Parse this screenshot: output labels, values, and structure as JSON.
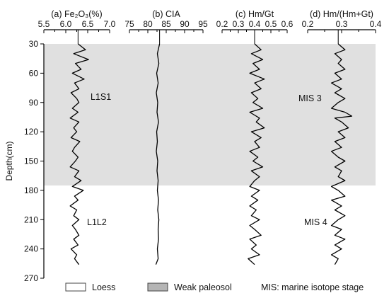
{
  "chart_data": {
    "type": "line",
    "y_axis": {
      "label": "Depth(cm)",
      "range": [
        30,
        270
      ],
      "reversed": true,
      "ticks": [
        "30",
        "60",
        "90",
        "120",
        "150",
        "180",
        "210",
        "240",
        "270"
      ]
    },
    "shaded_band": {
      "depth_range": [
        30,
        175
      ],
      "color": "#e0e0e0"
    },
    "panels": [
      {
        "title": "(a) Fe₂O₃(%)",
        "xlim": [
          5.5,
          7.0
        ],
        "ticks": [
          "5.5",
          "6.0",
          "6.5",
          "7.0"
        ],
        "depths": [
          30,
          36,
          40,
          46,
          50,
          56,
          60,
          66,
          70,
          76,
          80,
          86,
          90,
          96,
          100,
          106,
          110,
          116,
          120,
          126,
          130,
          136,
          140,
          146,
          150,
          156,
          160,
          166,
          170,
          176,
          180,
          186,
          190,
          196,
          200,
          206,
          210,
          216,
          220,
          226,
          230,
          236,
          240,
          246,
          250,
          256
        ],
        "values": [
          6.28,
          6.45,
          6.18,
          6.52,
          6.22,
          6.35,
          6.15,
          6.42,
          6.2,
          6.3,
          6.12,
          6.25,
          6.3,
          6.15,
          6.28,
          6.1,
          6.3,
          6.18,
          6.25,
          6.12,
          6.32,
          6.2,
          6.15,
          6.28,
          6.22,
          6.1,
          6.3,
          6.2,
          6.35,
          6.15,
          6.4,
          6.2,
          6.28,
          6.1,
          6.25,
          6.18,
          6.3,
          6.15,
          6.22,
          6.3,
          6.18,
          6.28,
          6.12,
          6.25,
          6.2,
          6.3
        ]
      },
      {
        "title": "(b) CIA",
        "xlim": [
          75,
          95
        ],
        "ticks": [
          "75",
          "80",
          "85",
          "90",
          "95"
        ],
        "depths": [
          30,
          40,
          50,
          60,
          70,
          80,
          90,
          100,
          110,
          120,
          130,
          140,
          150,
          160,
          170,
          180,
          190,
          200,
          210,
          220,
          230,
          240,
          250,
          256
        ],
        "values": [
          83.2,
          82.6,
          83,
          82.4,
          82.8,
          82.3,
          82.7,
          82.5,
          82.9,
          82.4,
          82.6,
          82.3,
          82.7,
          82.5,
          82.8,
          82.6,
          82.9,
          82.7,
          83,
          82.8,
          82.9,
          82.6,
          82.8,
          82.2
        ]
      },
      {
        "title": "(c) Hm/Gt",
        "xlim": [
          0.2,
          0.6
        ],
        "ticks": [
          "0.2",
          "0.3",
          "0.4",
          "0.5",
          "0.6"
        ],
        "depths": [
          30,
          36,
          40,
          46,
          50,
          56,
          60,
          66,
          70,
          76,
          80,
          86,
          90,
          96,
          100,
          106,
          110,
          116,
          120,
          126,
          130,
          136,
          140,
          146,
          150,
          156,
          160,
          166,
          170,
          176,
          180,
          186,
          190,
          196,
          200,
          206,
          210,
          216,
          220,
          226,
          230,
          236,
          240,
          246,
          250,
          256
        ],
        "values": [
          0.4,
          0.44,
          0.38,
          0.45,
          0.39,
          0.43,
          0.37,
          0.46,
          0.4,
          0.44,
          0.38,
          0.42,
          0.39,
          0.45,
          0.37,
          0.43,
          0.41,
          0.46,
          0.38,
          0.44,
          0.4,
          0.43,
          0.37,
          0.42,
          0.39,
          0.45,
          0.38,
          0.43,
          0.4,
          0.37,
          0.43,
          0.38,
          0.42,
          0.37,
          0.41,
          0.38,
          0.43,
          0.37,
          0.4,
          0.44,
          0.37,
          0.41,
          0.38,
          0.43,
          0.36,
          0.4
        ]
      },
      {
        "title": "(d) Hm/(Hm+Gt)",
        "xlim": [
          0.2,
          0.4
        ],
        "ticks": [
          "0.2",
          "0.3",
          "0.4"
        ],
        "depths": [
          30,
          36,
          40,
          46,
          50,
          56,
          60,
          66,
          70,
          76,
          80,
          86,
          90,
          96,
          100,
          104,
          106,
          110,
          116,
          120,
          126,
          130,
          136,
          140,
          146,
          150,
          156,
          160,
          166,
          170,
          176,
          180,
          186,
          190,
          196,
          200,
          206,
          210,
          216,
          220,
          226,
          230,
          236,
          240,
          246,
          250,
          256
        ],
        "values": [
          0.29,
          0.31,
          0.28,
          0.3,
          0.29,
          0.31,
          0.28,
          0.3,
          0.27,
          0.3,
          0.28,
          0.31,
          0.29,
          0.27,
          0.31,
          0.33,
          0.28,
          0.3,
          0.32,
          0.29,
          0.31,
          0.28,
          0.3,
          0.27,
          0.29,
          0.31,
          0.28,
          0.3,
          0.29,
          0.31,
          0.27,
          0.29,
          0.31,
          0.27,
          0.3,
          0.28,
          0.31,
          0.29,
          0.27,
          0.3,
          0.28,
          0.31,
          0.28,
          0.3,
          0.27,
          0.29,
          0.28
        ]
      }
    ],
    "annotations": [
      "L1S1",
      "L1L2",
      "MIS 3",
      "MIS 4"
    ],
    "legend": {
      "position": "bottom",
      "items": [
        {
          "label": "Loess",
          "color": "#ffffff"
        },
        {
          "label": "Weak paleosol",
          "color": "#b5b5b5"
        },
        {
          "label": "MIS: marine isotope stage"
        }
      ]
    }
  }
}
